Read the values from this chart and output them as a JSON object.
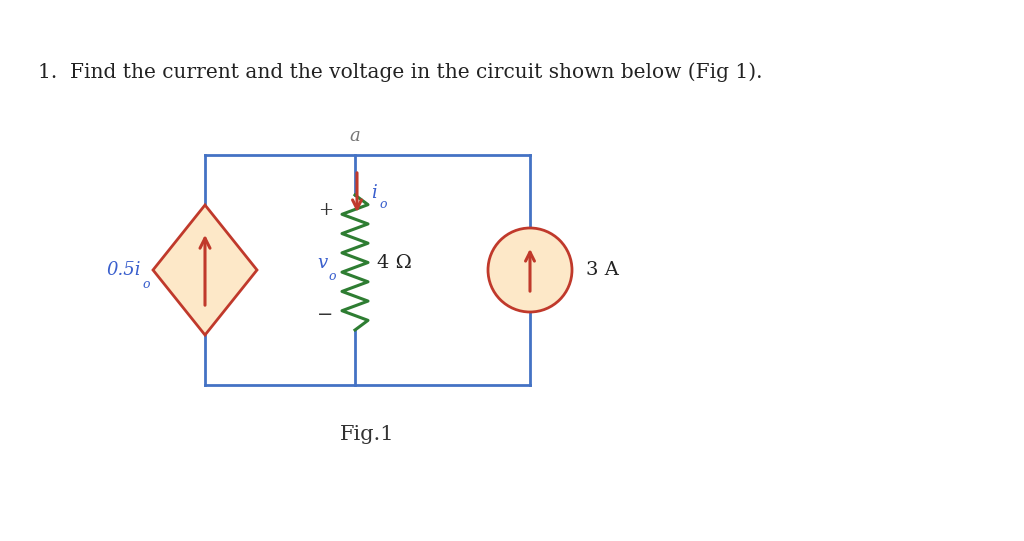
{
  "title": "1.  Find the current and the voltage in the circuit shown below (Fig 1).",
  "bg_color": "#ffffff",
  "circuit_color": "#4472c4",
  "diamond_fill": "#fde8c8",
  "diamond_border": "#c0392b",
  "circle_fill": "#fde8c8",
  "circle_border": "#c0392b",
  "arrow_color": "#c0392b",
  "resistor_color": "#2e7d32",
  "label_color": "#3a5fcd",
  "fig_label": "Fig.1",
  "node_a_label": "a",
  "source_label": "0.5i",
  "source_sub": "o",
  "current_label": "i",
  "current_sub": "o",
  "resistor_label": "4 Ω",
  "current_source_label": "3 A",
  "v0_label": "v",
  "v0_sub": "o",
  "plus_label": "+",
  "minus_label": "−",
  "lw": 2.0
}
